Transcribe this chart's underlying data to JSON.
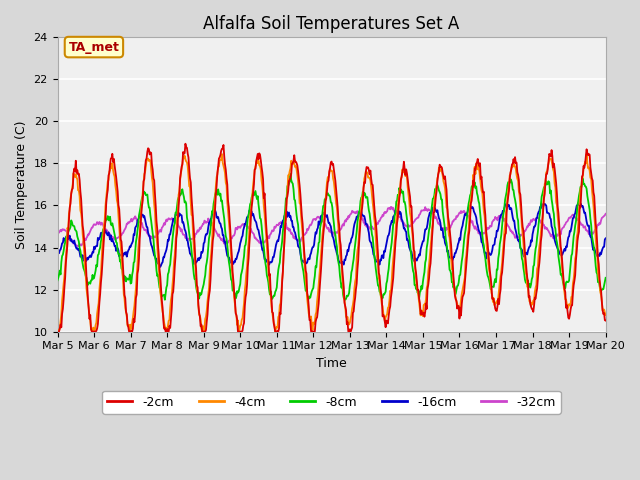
{
  "title": "Alfalfa Soil Temperatures Set A",
  "xlabel": "Time",
  "ylabel": "Soil Temperature (C)",
  "ylim": [
    10,
    24
  ],
  "xlim": [
    0,
    360
  ],
  "x_tick_labels": [
    "Mar 5",
    "Mar 6",
    "Mar 7",
    "Mar 8",
    "Mar 9",
    "Mar 10",
    "Mar 11",
    "Mar 12",
    "Mar 13",
    "Mar 14",
    "Mar 15",
    "Mar 16",
    "Mar 17",
    "Mar 18",
    "Mar 19",
    "Mar 20"
  ],
  "colors": {
    "-2cm": "#dd0000",
    "-4cm": "#ff8800",
    "-8cm": "#00cc00",
    "-16cm": "#0000cc",
    "-32cm": "#cc44cc"
  },
  "annotation_text": "TA_met",
  "annotation_bg": "#ffffcc",
  "annotation_border": "#cc8800",
  "fig_bg": "#d8d8d8",
  "plot_bg": "#f0f0f0",
  "grid_color": "#ffffff",
  "title_fontsize": 12,
  "axis_label_fontsize": 9,
  "tick_fontsize": 8,
  "legend_fontsize": 9
}
